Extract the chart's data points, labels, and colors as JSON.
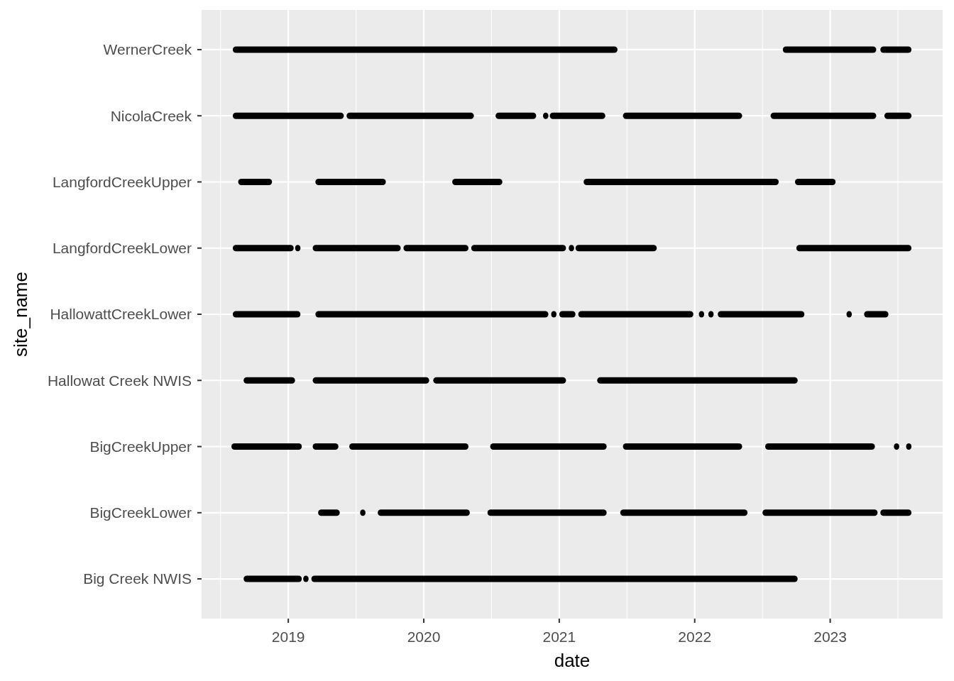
{
  "chart_data": {
    "type": "bar",
    "orientation": "horizontal",
    "xlabel": "date",
    "ylabel": "site_name",
    "categories": [
      "WernerCreek",
      "NicolaCreek",
      "LangfordCreekUpper",
      "LangfordCreekLower",
      "HallowattCreekLower",
      "Hallowat Creek NWIS",
      "BigCreekUpper",
      "BigCreekLower",
      "Big Creek NWIS"
    ],
    "xlim": [
      2018.36,
      2023.83
    ],
    "xticks": [
      {
        "value": 2018.5,
        "label": null
      },
      2019,
      {
        "value": 2019.5,
        "label": null
      },
      2020,
      {
        "value": 2020.5,
        "label": null
      },
      2021,
      {
        "value": 2021.5,
        "label": null
      },
      2022,
      {
        "value": 2022.5,
        "label": null
      },
      2023,
      {
        "value": 2023.5,
        "label": null
      }
    ],
    "grid": true,
    "series": [
      {
        "color": "#000000",
        "base": [
          2018.59,
          2018.59,
          2018.63,
          2018.59,
          2018.59,
          2018.67,
          2018.58,
          2019.22,
          2018.67
        ],
        "values": [
          2.84,
          0.82,
          0.25,
          0.45,
          0.5,
          0.38,
          0.52,
          0.16,
          0.43
        ]
      },
      {
        "color": "#000000",
        "base": [
          2022.65,
          2019.43,
          2019.2,
          2019.05,
          2019.2,
          2019.18,
          2019.18,
          2019.53,
          2019.11
        ],
        "values": [
          0.69,
          0.94,
          0.52,
          0.04,
          1.72,
          0.86,
          0.19,
          0.04,
          0.04
        ]
      },
      {
        "color": "#000000",
        "base": [
          2023.37,
          2020.53,
          2020.21,
          2019.18,
          2020.94,
          2020.07,
          2019.45,
          2019.66,
          2019.17
        ],
        "values": [
          0.23,
          0.3,
          0.37,
          0.65,
          0.04,
          0.98,
          0.88,
          0.68,
          3.59
        ]
      },
      {
        "color": "#000000",
        "base": [
          null,
          2020.88,
          2021.18,
          2019.85,
          2021.0,
          2021.28,
          2020.49,
          2020.47,
          null
        ],
        "values": [
          null,
          0.04,
          1.44,
          0.48,
          0.12,
          1.48,
          0.86,
          0.88,
          null
        ]
      },
      {
        "color": "#000000",
        "base": [
          null,
          2020.93,
          2022.74,
          2020.35,
          2021.14,
          null,
          2021.47,
          2021.45,
          null
        ],
        "values": [
          null,
          0.41,
          0.3,
          0.7,
          0.85,
          null,
          0.88,
          0.94,
          null
        ]
      },
      {
        "color": "#000000",
        "base": [
          null,
          2021.47,
          null,
          2021.07,
          2022.03,
          null,
          2022.52,
          2022.5,
          null
        ],
        "values": [
          null,
          0.88,
          null,
          0.04,
          0.04,
          null,
          0.81,
          0.85,
          null
        ]
      },
      {
        "color": "#000000",
        "base": [
          null,
          2022.56,
          null,
          2021.12,
          2022.1,
          null,
          2023.47,
          2023.37,
          null
        ],
        "values": [
          null,
          0.78,
          null,
          0.6,
          0.04,
          null,
          0.04,
          0.23,
          null
        ]
      },
      {
        "color": "#000000",
        "base": [
          null,
          2023.4,
          null,
          2022.75,
          2022.17,
          null,
          2023.56,
          null,
          null
        ],
        "values": [
          null,
          0.2,
          null,
          0.85,
          0.64,
          null,
          0.04,
          null,
          null
        ]
      },
      {
        "color": "#000000",
        "base": [
          null,
          null,
          null,
          null,
          2023.12,
          null,
          null,
          null,
          null
        ],
        "values": [
          null,
          null,
          null,
          null,
          0.04,
          null,
          null,
          null,
          null
        ]
      },
      {
        "color": "#000000",
        "base": [
          null,
          null,
          null,
          null,
          2023.25,
          null,
          null,
          null,
          null
        ],
        "values": [
          null,
          null,
          null,
          null,
          0.18,
          null,
          null,
          null,
          null
        ]
      }
    ]
  }
}
